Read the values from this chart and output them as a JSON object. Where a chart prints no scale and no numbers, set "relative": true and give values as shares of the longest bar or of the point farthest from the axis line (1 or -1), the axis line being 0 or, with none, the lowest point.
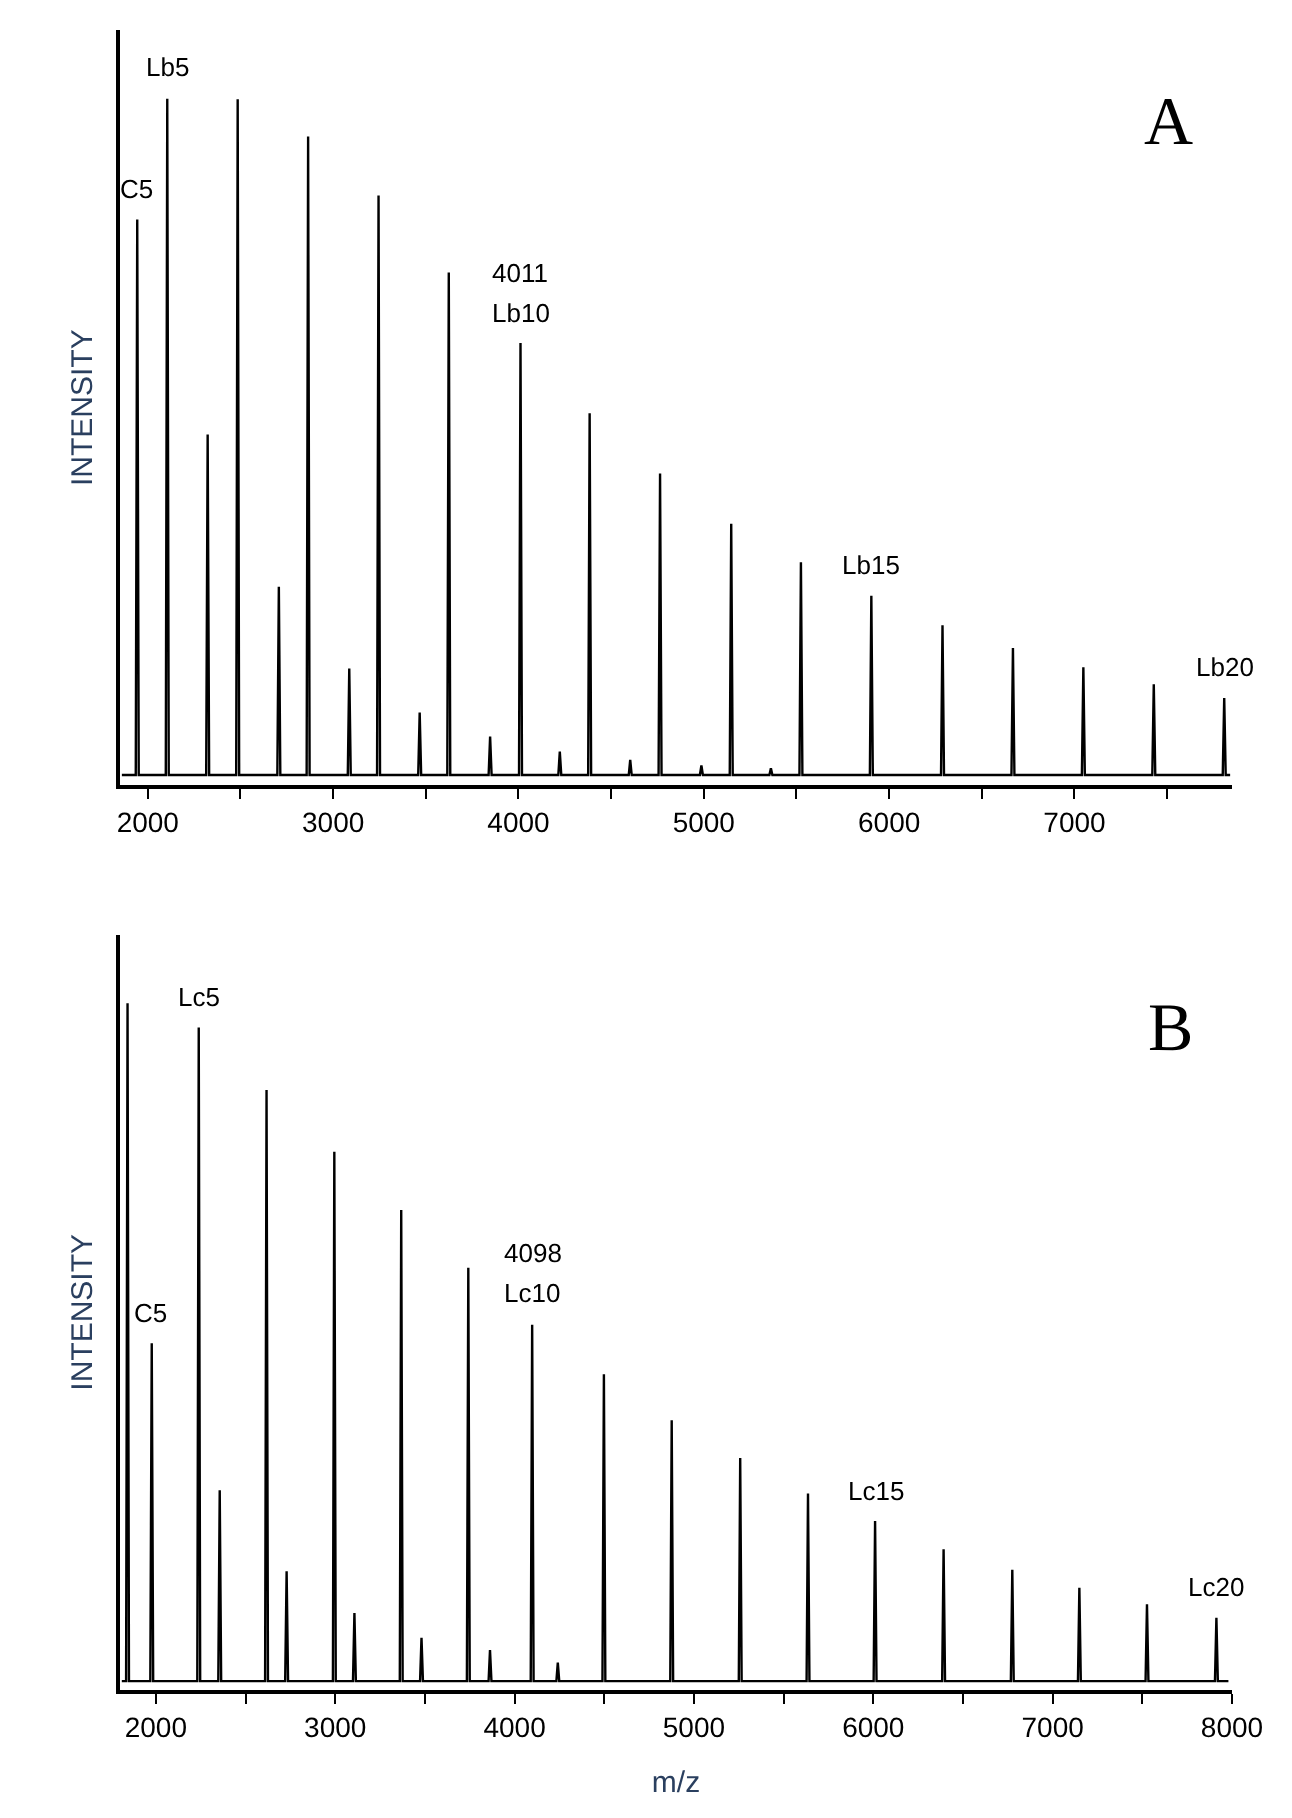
{
  "chart_data": [
    {
      "type": "line",
      "relative": true,
      "ylabel": "INTENSITY",
      "xlim": [
        1850,
        7850
      ],
      "xticks": [
        2000,
        {
          "value": 2500,
          "label": null
        },
        3000,
        {
          "value": 3500,
          "label": null
        },
        4000,
        {
          "value": 4500,
          "label": null
        },
        5000,
        {
          "value": 5500,
          "label": null
        },
        6000,
        {
          "value": 6500,
          "label": null
        },
        7000,
        {
          "value": 7500,
          "label": null
        }
      ],
      "marker": "none",
      "line_style": "solid",
      "series": [
        {
          "color": "#000000",
          "x": [
            1860,
            1935,
            1943,
            1951,
            2097,
            2105,
            2113,
            2315,
            2323,
            2331,
            2477,
            2485,
            2493,
            2699,
            2707,
            2715,
            2857,
            2865,
            2873,
            3079,
            3087,
            3095,
            3237,
            3245,
            3253,
            3459,
            3467,
            3475,
            3616,
            3624,
            3632,
            3839,
            3847,
            3855,
            4003,
            4011,
            4019,
            4215,
            4223,
            4231,
            4376,
            4384,
            4392,
            4595,
            4603,
            4611,
            4756,
            4764,
            4772,
            4979,
            4987,
            4995,
            5140,
            5148,
            5156,
            5354,
            5362,
            5370,
            5516,
            5524,
            5532,
            5896,
            5904,
            5912,
            6280,
            6288,
            6296,
            6660,
            6668,
            6676,
            7040,
            7048,
            7056,
            7420,
            7428,
            7436,
            7800,
            7808,
            7816,
            7840
          ],
          "values": [
            0.015,
            0.015,
            0.824,
            0.015,
            0.015,
            1.0,
            0.015,
            0.015,
            0.511,
            0.015,
            0.015,
            0.999,
            0.015,
            0.015,
            0.289,
            0.015,
            0.015,
            0.945,
            0.015,
            0.015,
            0.17,
            0.015,
            0.015,
            0.859,
            0.015,
            0.015,
            0.106,
            0.015,
            0.015,
            0.747,
            0.015,
            0.015,
            0.071,
            0.015,
            0.015,
            0.644,
            0.015,
            0.015,
            0.049,
            0.015,
            0.015,
            0.542,
            0.015,
            0.015,
            0.037,
            0.015,
            0.015,
            0.454,
            0.015,
            0.015,
            0.029,
            0.015,
            0.015,
            0.381,
            0.015,
            0.015,
            0.025,
            0.015,
            0.015,
            0.325,
            0.015,
            0.015,
            0.276,
            0.015,
            0.015,
            0.233,
            0.015,
            0.015,
            0.2,
            0.015,
            0.015,
            0.172,
            0.015,
            0.015,
            0.147,
            0.015,
            0.015,
            0.127,
            0.015,
            0.015
          ]
        }
      ],
      "annotations": [
        "A",
        {
          "text": "Lb5",
          "x": 2105,
          "y": 1.0
        },
        {
          "text": "C5",
          "x": 1943,
          "y": 0.824
        },
        {
          "text": "4011",
          "x": 4011,
          "y": 0.644
        },
        {
          "text": "Lb10",
          "x": 4011,
          "y": 0.644
        },
        {
          "text": "Lb15",
          "x": 5904,
          "y": 0.276
        },
        {
          "text": "Lb20",
          "x": 7808,
          "y": 0.127
        }
      ]
    },
    {
      "type": "line",
      "relative": true,
      "ylabel": "INTENSITY",
      "xlabel": "m/z",
      "xlim": [
        1800,
        8000
      ],
      "xticks": [
        2000,
        {
          "value": 2500,
          "label": null
        },
        3000,
        {
          "value": 3500,
          "label": null
        },
        4000,
        {
          "value": 4500,
          "label": null
        },
        5000,
        {
          "value": 5500,
          "label": null
        },
        6000,
        {
          "value": 6500,
          "label": null
        },
        7000,
        {
          "value": 7500,
          "label": null
        },
        8000
      ],
      "marker": "none",
      "line_style": "solid",
      "series": [
        {
          "color": "#000000",
          "x": [
            1810,
            1834,
            1842,
            1850,
            1969,
            1977,
            1985,
            2231,
            2239,
            2247,
            2348,
            2356,
            2364,
            2609,
            2617,
            2625,
            2721,
            2729,
            2737,
            2987,
            2995,
            3003,
            3099,
            3107,
            3115,
            3360,
            3368,
            3376,
            3473,
            3481,
            3489,
            3734,
            3742,
            3750,
            3855,
            3863,
            3871,
            4090,
            4098,
            4106,
            4233,
            4241,
            4249,
            4490,
            4498,
            4506,
            4868,
            4876,
            4884,
            5250,
            5258,
            5266,
            5628,
            5636,
            5644,
            6002,
            6010,
            6018,
            6384,
            6392,
            6400,
            6767,
            6775,
            6783,
            7141,
            7149,
            7157,
            7518,
            7526,
            7534,
            7905,
            7913,
            7921,
            7980
          ],
          "values": [
            0.013,
            0.013,
            1.0,
            0.013,
            0.013,
            0.505,
            0.013,
            0.013,
            0.965,
            0.013,
            0.013,
            0.291,
            0.013,
            0.013,
            0.874,
            0.013,
            0.013,
            0.173,
            0.013,
            0.013,
            0.784,
            0.013,
            0.013,
            0.112,
            0.013,
            0.013,
            0.699,
            0.013,
            0.013,
            0.076,
            0.013,
            0.013,
            0.615,
            0.013,
            0.013,
            0.058,
            0.013,
            0.013,
            0.532,
            0.013,
            0.013,
            0.04,
            0.013,
            0.013,
            0.46,
            0.013,
            0.013,
            0.393,
            0.013,
            0.013,
            0.338,
            0.013,
            0.013,
            0.286,
            0.013,
            0.013,
            0.246,
            0.013,
            0.013,
            0.205,
            0.013,
            0.013,
            0.175,
            0.013,
            0.013,
            0.149,
            0.013,
            0.013,
            0.125,
            0.013,
            0.013,
            0.105,
            0.013,
            0.013
          ]
        }
      ],
      "annotations": [
        "B",
        {
          "text": "Lc5",
          "x": 2239,
          "y": 0.965
        },
        {
          "text": "C5",
          "x": 1977,
          "y": 0.505
        },
        {
          "text": "4098",
          "x": 4098,
          "y": 0.532
        },
        {
          "text": "Lc10",
          "x": 4098,
          "y": 0.532
        },
        {
          "text": "Lc15",
          "x": 6010,
          "y": 0.246
        },
        {
          "text": "Lc20",
          "x": 7913,
          "y": 0.105
        }
      ]
    }
  ]
}
